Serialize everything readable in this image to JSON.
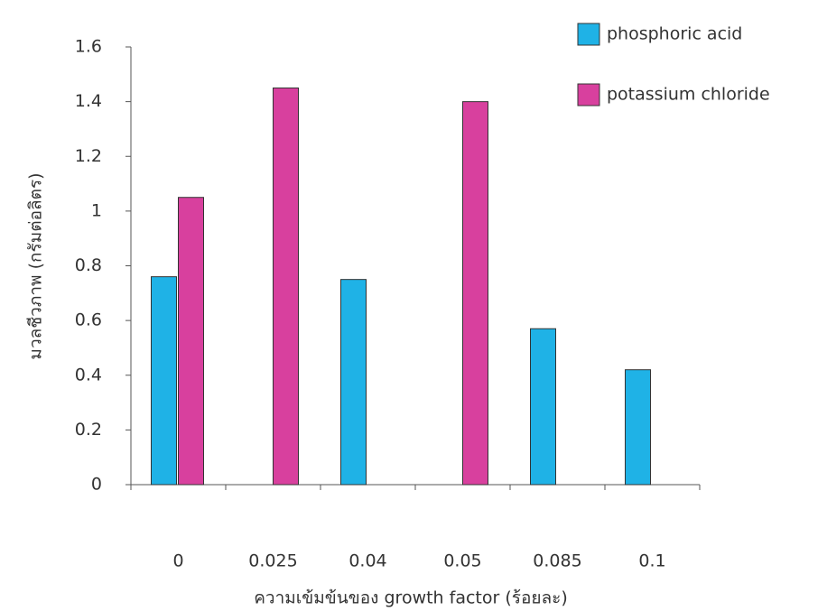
{
  "chart_data": {
    "type": "bar",
    "categories": [
      "0",
      "0.025",
      "0.04",
      "0.05",
      "0.085",
      "0.1"
    ],
    "series": [
      {
        "name": "phosphoric acid",
        "color": "#1fb2e6",
        "values": [
          0.76,
          null,
          0.75,
          null,
          0.57,
          0.42
        ]
      },
      {
        "name": "potassium chloride",
        "color": "#d8409e",
        "values": [
          1.05,
          1.45,
          null,
          1.4,
          null,
          null
        ]
      }
    ],
    "x_label": "ความเข้มข้นของ growth factor (ร้อยละ)",
    "y_label": "มวลชีวภาพ (กรัมต่อลิตร)",
    "ylim": [
      0,
      1.6
    ],
    "yticks": [
      0,
      0.2,
      0.4,
      0.6,
      0.8,
      1,
      1.2,
      1.4,
      1.6
    ],
    "grid": false,
    "legend": "top-right"
  }
}
